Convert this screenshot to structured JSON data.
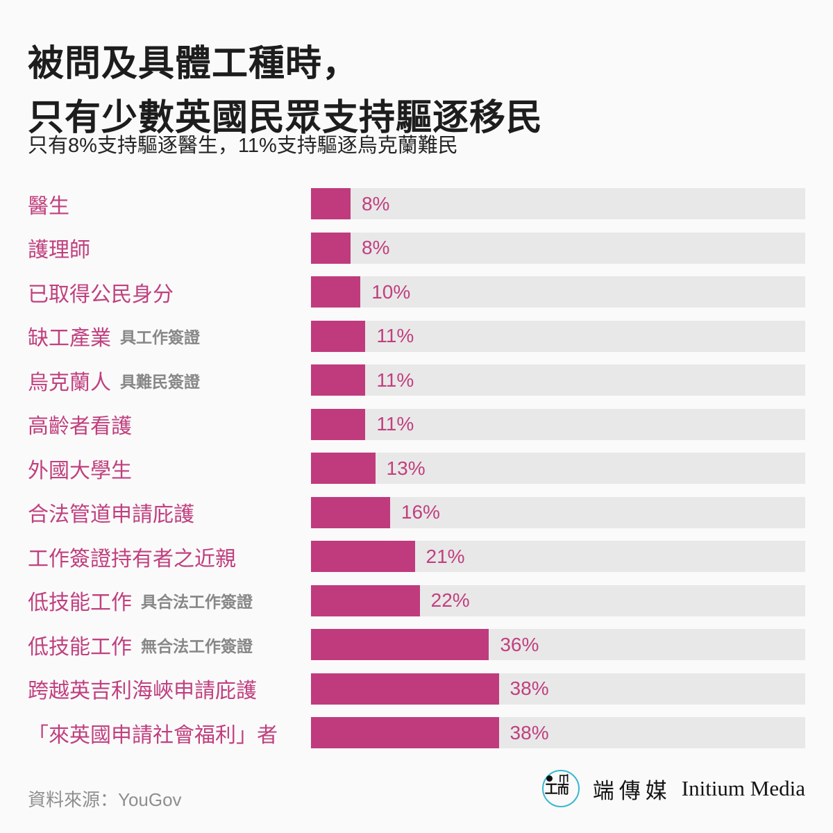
{
  "header": {
    "title_line1": "被問及具體工種時，",
    "title_line2": "只有少數英國民眾支持驅逐移民",
    "subtitle": "只有8%支持驅逐醫生，11%支持驅逐烏克蘭難民"
  },
  "chart_data": {
    "type": "bar",
    "orientation": "horizontal",
    "value_unit": "%",
    "xlim": [
      0,
      100
    ],
    "grid": false,
    "legend": false,
    "bar_color": "#bf3b7e",
    "track_color": "#e8e8e8",
    "label_color": "#c0407f",
    "rows": [
      {
        "label": "醫生",
        "sublabel": "",
        "value": 8,
        "value_label": "8%"
      },
      {
        "label": "護理師",
        "sublabel": "",
        "value": 8,
        "value_label": "8%"
      },
      {
        "label": "已取得公民身分",
        "sublabel": "",
        "value": 10,
        "value_label": "10%"
      },
      {
        "label": "缺工產業",
        "sublabel": "具工作簽證",
        "value": 11,
        "value_label": "11%"
      },
      {
        "label": "烏克蘭人",
        "sublabel": "具難民簽證",
        "value": 11,
        "value_label": "11%"
      },
      {
        "label": "高齡者看護",
        "sublabel": "",
        "value": 11,
        "value_label": "11%"
      },
      {
        "label": "外國大學生",
        "sublabel": "",
        "value": 13,
        "value_label": "13%"
      },
      {
        "label": "合法管道申請庇護",
        "sublabel": "",
        "value": 16,
        "value_label": "16%"
      },
      {
        "label": "工作簽證持有者之近親",
        "sublabel": "",
        "value": 21,
        "value_label": "21%"
      },
      {
        "label": "低技能工作",
        "sublabel": "具合法工作簽證",
        "value": 22,
        "value_label": "22%"
      },
      {
        "label": "低技能工作",
        "sublabel": "無合法工作簽證",
        "value": 36,
        "value_label": "36%"
      },
      {
        "label": "跨越英吉利海峽申請庇護",
        "sublabel": "",
        "value": 38,
        "value_label": "38%"
      },
      {
        "label": "「來英國申請社會福利」者",
        "sublabel": "",
        "value": 38,
        "value_label": "38%"
      }
    ]
  },
  "footer": {
    "source": "資料來源：YouGov",
    "brand_zh": "端傳媒",
    "brand_en": "Initium Media",
    "logo_color": "#35b9cf",
    "logo_glyphs": {
      "left": "工",
      "top": "山",
      "bottom": "而"
    }
  }
}
